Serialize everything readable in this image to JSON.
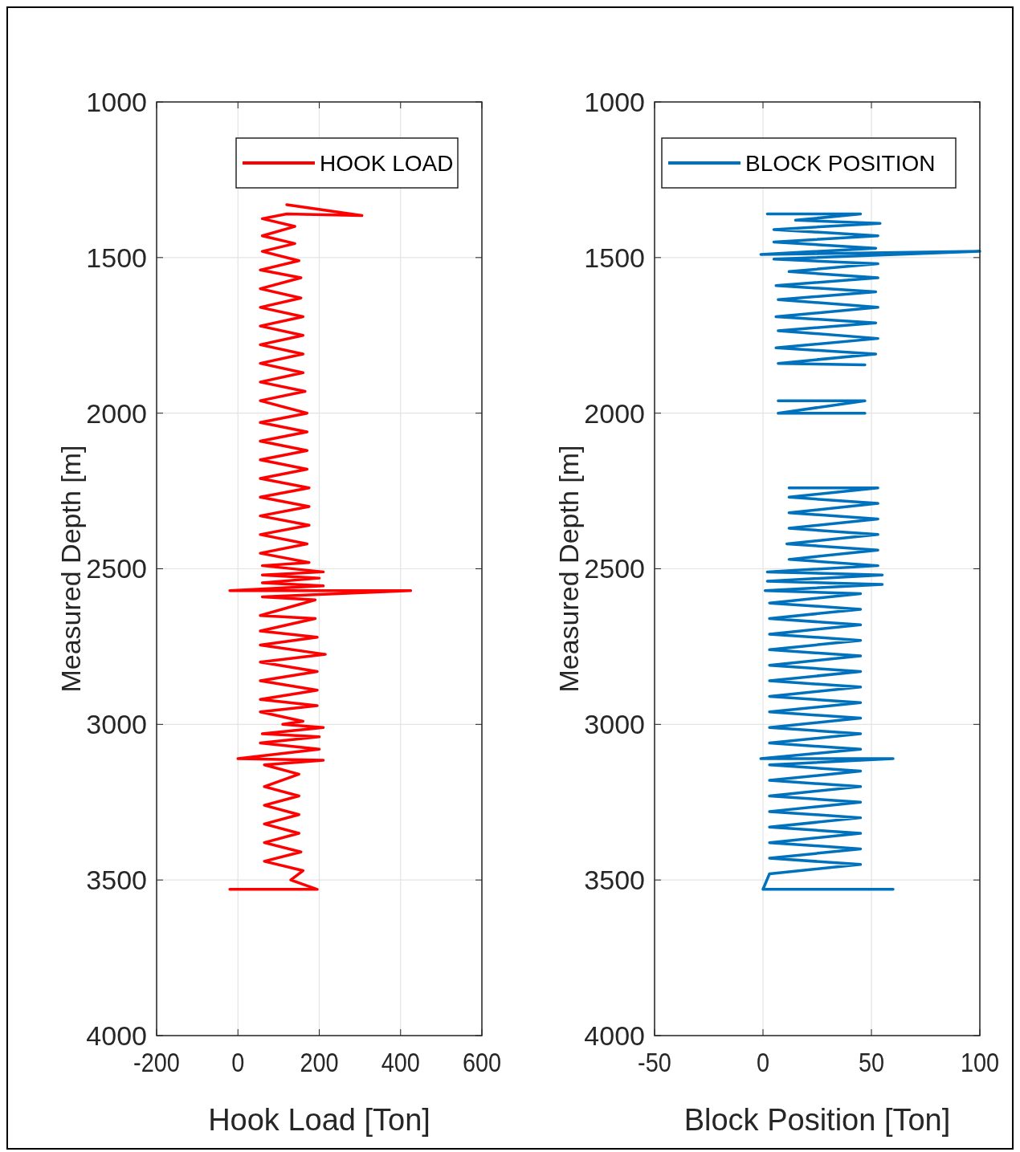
{
  "chart_data": [
    {
      "type": "line",
      "xlabel": "Hook Load [Ton]",
      "ylabel": "Measured Depth  [m]",
      "xlim": [
        -200,
        600
      ],
      "xticks": [
        -200,
        0,
        200,
        400,
        600
      ],
      "ylim": [
        4000,
        1000
      ],
      "yticks": [
        1000,
        1500,
        2000,
        2500,
        3000,
        3500,
        4000
      ],
      "grid": true,
      "legend": "top right",
      "series": [
        {
          "name": "HOOK LOAD",
          "color": "#ff0000",
          "x": [
            120,
            305,
            120,
            60,
            140,
            60,
            140,
            60,
            150,
            55,
            155,
            55,
            155,
            55,
            160,
            55,
            160,
            55,
            160,
            55,
            160,
            55,
            165,
            55,
            170,
            55,
            170,
            55,
            170,
            55,
            170,
            55,
            175,
            55,
            175,
            55,
            175,
            55,
            170,
            55,
            175,
            60,
            210,
            60,
            200,
            60,
            210,
            -20,
            425,
            60,
            190,
            55,
            190,
            55,
            195,
            55,
            215,
            55,
            195,
            55,
            195,
            55,
            195,
            55,
            160,
            110,
            210,
            60,
            200,
            55,
            200,
            0,
            210,
            65,
            150,
            65,
            150,
            65,
            150,
            65,
            150,
            65,
            155,
            65,
            160,
            130,
            195,
            -20
          ],
          "values": [
            1330,
            1365,
            1360,
            1375,
            1400,
            1430,
            1455,
            1480,
            1510,
            1540,
            1565,
            1600,
            1630,
            1660,
            1690,
            1720,
            1750,
            1780,
            1810,
            1840,
            1870,
            1900,
            1930,
            1960,
            2000,
            2030,
            2060,
            2090,
            2120,
            2150,
            2180,
            2210,
            2240,
            2270,
            2300,
            2330,
            2360,
            2390,
            2420,
            2450,
            2480,
            2490,
            2510,
            2520,
            2530,
            2545,
            2555,
            2570,
            2570,
            2590,
            2600,
            2650,
            2660,
            2700,
            2720,
            2745,
            2775,
            2800,
            2830,
            2860,
            2890,
            2920,
            2940,
            2960,
            2990,
            3000,
            3010,
            3030,
            3040,
            3060,
            3080,
            3110,
            3115,
            3130,
            3160,
            3200,
            3230,
            3260,
            3290,
            3320,
            3350,
            3380,
            3410,
            3440,
            3470,
            3500,
            3530,
            3530
          ]
        }
      ]
    },
    {
      "type": "line",
      "xlabel": "Block Position [Ton]",
      "ylabel": "Measured Depth  [m]",
      "xlim": [
        -50,
        100
      ],
      "xticks": [
        -50,
        0,
        50,
        100
      ],
      "ylim": [
        4000,
        1000
      ],
      "yticks": [
        1000,
        1500,
        2000,
        2500,
        3000,
        3500,
        4000
      ],
      "grid": true,
      "legend": "top right",
      "series": [
        {
          "name": "BLOCK POSITION",
          "color": "#0072bd",
          "x": [
            2,
            45,
            15,
            54,
            5,
            53,
            5,
            52,
            -1,
            100,
            5,
            53,
            12,
            53,
            6,
            52,
            7,
            53,
            6,
            52,
            7,
            53,
            6,
            52,
            7,
            47,
            null,
            7,
            47,
            7,
            47,
            null,
            12,
            53,
            12,
            53,
            12,
            53,
            12,
            53,
            11,
            53,
            12,
            53,
            2,
            55,
            2,
            55,
            1,
            45,
            3,
            45,
            3,
            45,
            3,
            45,
            3,
            45,
            3,
            45,
            3,
            45,
            3,
            45,
            3,
            45,
            3,
            45,
            3,
            45,
            -1,
            60,
            3,
            45,
            3,
            45,
            3,
            45,
            3,
            45,
            3,
            45,
            3,
            45,
            3,
            45,
            3,
            0,
            60
          ],
          "values": [
            1360,
            1360,
            1380,
            1390,
            1410,
            1430,
            1450,
            1470,
            1490,
            1480,
            1505,
            1520,
            1545,
            1565,
            1590,
            1610,
            1635,
            1660,
            1690,
            1710,
            1735,
            1760,
            1790,
            1810,
            1840,
            1845,
            null,
            1960,
            1960,
            2000,
            2000,
            null,
            2240,
            2240,
            2270,
            2290,
            2320,
            2340,
            2370,
            2390,
            2420,
            2440,
            2470,
            2490,
            2510,
            2520,
            2540,
            2550,
            2570,
            2580,
            2610,
            2630,
            2660,
            2680,
            2710,
            2730,
            2760,
            2780,
            2810,
            2830,
            2860,
            2880,
            2910,
            2930,
            2960,
            2980,
            3010,
            3030,
            3060,
            3080,
            3110,
            3110,
            3130,
            3150,
            3180,
            3200,
            3230,
            3250,
            3280,
            3300,
            3330,
            3350,
            3380,
            3400,
            3430,
            3450,
            3480,
            3530,
            3530
          ]
        }
      ]
    }
  ]
}
